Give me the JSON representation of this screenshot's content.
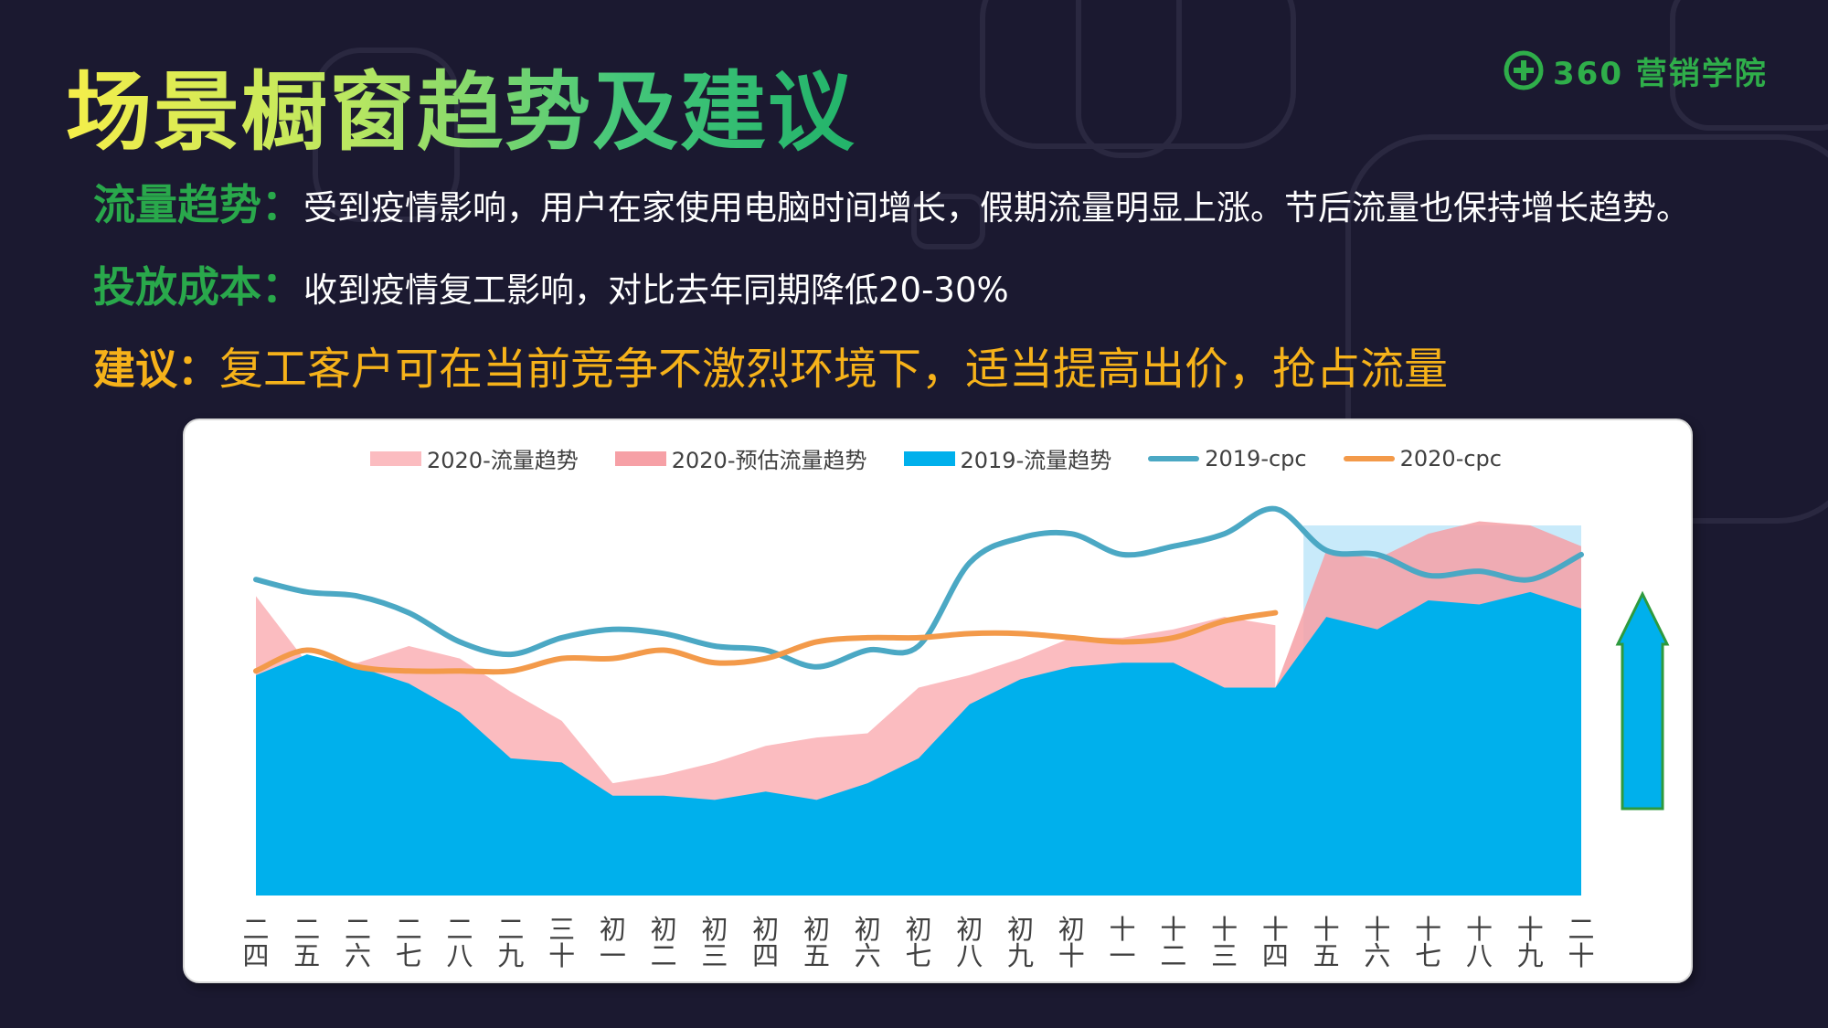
{
  "logo": {
    "text": "360 营销学院"
  },
  "title": "场景橱窗趋势及建议",
  "lines": {
    "traffic": {
      "key": "流量趋势：",
      "text": "受到疫情影响，用户在家使用电脑时间增长，假期流量明显上涨。节后流量也保持增长趋势。"
    },
    "cost": {
      "key": "投放成本：",
      "text": "收到疫情复工影响，对比去年同期降低20-30%"
    },
    "advice": {
      "key": "建议：",
      "text": "复工客户可在当前竞争不激烈环境下，适当提高出价，抢占流量"
    }
  },
  "colors": {
    "accent_green": "#29a84b",
    "accent_yellow": "#f6b21a",
    "series_2020_traffic": "#fbbcc0",
    "series_2020_forecast": "#f6a0a6",
    "series_2019_traffic": "#00b0ec",
    "series_2019_cpc": "#4ba8c4",
    "series_2020_cpc": "#f39a4a",
    "highlight": "#c8eafa",
    "arrow_fill": "#00b0ec",
    "arrow_stroke": "#2e9a3e"
  },
  "chart_data": {
    "type": "area",
    "categories": [
      "二四",
      "二五",
      "二六",
      "二七",
      "二八",
      "二九",
      "三十",
      "初一",
      "初二",
      "初三",
      "初四",
      "初五",
      "初六",
      "初七",
      "初八",
      "初九",
      "初十",
      "十一",
      "十二",
      "十三",
      "十四",
      "十五",
      "十六",
      "十七",
      "十八",
      "十九",
      "二十"
    ],
    "ylim": [
      0,
      100
    ],
    "series": [
      {
        "name": "2020-流量趋势",
        "kind": "area",
        "color": "#fbbcc0",
        "values": [
          72,
          56,
          56,
          60,
          57,
          49,
          42,
          27,
          29,
          32,
          36,
          38,
          39,
          50,
          53,
          57,
          62,
          62,
          64,
          67,
          65,
          null,
          null,
          null,
          null,
          null,
          null
        ]
      },
      {
        "name": "2020-预估流量趋势",
        "kind": "area",
        "color": "#f6a0a6",
        "values": [
          null,
          null,
          null,
          null,
          null,
          null,
          null,
          null,
          null,
          null,
          null,
          null,
          null,
          null,
          null,
          null,
          null,
          null,
          null,
          null,
          50,
          83,
          81,
          87,
          90,
          89,
          84
        ]
      },
      {
        "name": "2019-流量趋势",
        "kind": "area",
        "color": "#00b0ec",
        "values": [
          53,
          58,
          55,
          51,
          44,
          33,
          32,
          24,
          24,
          23,
          25,
          23,
          27,
          33,
          46,
          52,
          55,
          56,
          56,
          50,
          50,
          67,
          64,
          71,
          70,
          73,
          69
        ]
      },
      {
        "name": "2019-cpc",
        "kind": "line",
        "color": "#4ba8c4",
        "values": [
          76,
          73,
          72,
          68,
          61,
          58,
          62,
          64,
          63,
          60,
          59,
          55,
          59,
          60,
          80,
          86,
          87,
          82,
          84,
          87,
          93,
          83,
          82,
          77,
          78,
          76,
          82
        ]
      },
      {
        "name": "2020-cpc",
        "kind": "line",
        "color": "#f39a4a",
        "values": [
          54,
          59,
          55,
          54,
          54,
          54,
          57,
          57,
          59,
          56,
          57,
          61,
          62,
          62,
          63,
          63,
          62,
          61,
          62,
          66,
          68,
          null,
          null,
          null,
          null,
          null,
          null
        ]
      }
    ],
    "highlight_range": [
      "十五",
      "二十"
    ],
    "grid": false,
    "legend": "top"
  }
}
